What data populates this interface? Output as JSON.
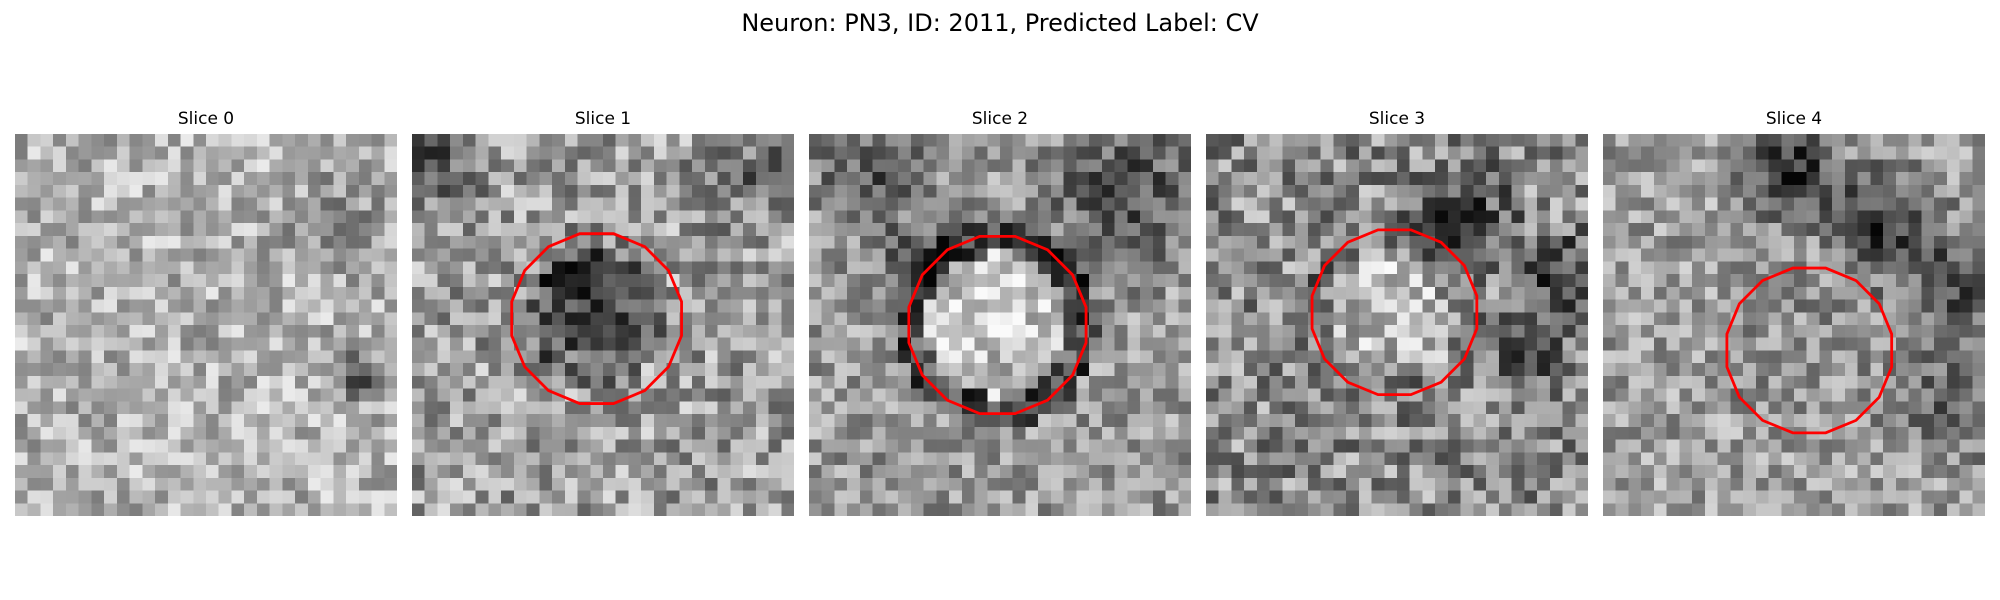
{
  "figure": {
    "title": "Neuron: PN3, ID: 2011, Predicted Label: CV"
  },
  "panels": [
    {
      "title": "Slice 0",
      "has_contour": false,
      "contour_color": "#ff0000"
    },
    {
      "title": "Slice 1",
      "has_contour": true,
      "contour_color": "#ff0000"
    },
    {
      "title": "Slice 2",
      "has_contour": true,
      "contour_color": "#ff0000"
    },
    {
      "title": "Slice 3",
      "has_contour": true,
      "contour_color": "#ff0000"
    },
    {
      "title": "Slice 4",
      "has_contour": true,
      "contour_color": "#ff0000"
    }
  ],
  "colormap": "gray"
}
